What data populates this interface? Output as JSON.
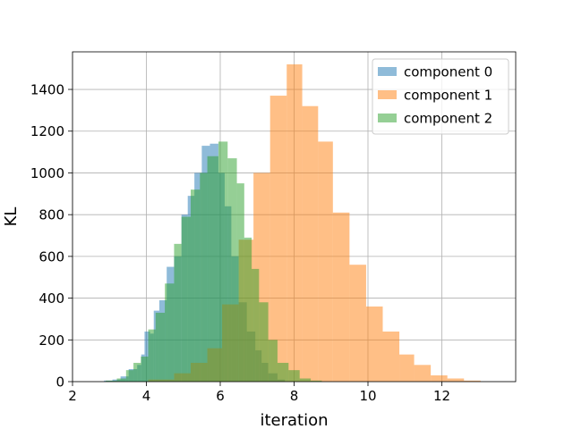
{
  "chart_data": {
    "type": "bar",
    "subtype": "histogram-overlay",
    "xlabel": "iteration",
    "ylabel": "KL",
    "xlim": [
      2,
      14
    ],
    "ylim": [
      0,
      1580
    ],
    "xticks": [
      2,
      4,
      6,
      8,
      10,
      12
    ],
    "yticks": [
      0,
      200,
      400,
      600,
      800,
      1000,
      1200,
      1400
    ],
    "grid": true,
    "legend_position": "top-right",
    "series": [
      {
        "name": "component 0",
        "color": "#1f77b4",
        "opacity": 0.5,
        "bins": [
          [
            2.85,
            3.08,
            5
          ],
          [
            3.08,
            3.3,
            10
          ],
          [
            3.3,
            3.52,
            25
          ],
          [
            3.52,
            3.75,
            60
          ],
          [
            3.75,
            3.86,
            80
          ],
          [
            3.86,
            3.95,
            130
          ],
          [
            3.95,
            4.1,
            240
          ],
          [
            4.1,
            4.2,
            230
          ],
          [
            4.2,
            4.35,
            340
          ],
          [
            4.35,
            4.55,
            390
          ],
          [
            4.55,
            4.75,
            550
          ],
          [
            4.75,
            4.95,
            600
          ],
          [
            4.95,
            5.12,
            800
          ],
          [
            5.12,
            5.3,
            890
          ],
          [
            5.3,
            5.5,
            1000
          ],
          [
            5.5,
            5.72,
            1130
          ],
          [
            5.72,
            5.95,
            1140
          ],
          [
            5.95,
            6.12,
            1000
          ],
          [
            6.12,
            6.3,
            840
          ],
          [
            6.3,
            6.5,
            600
          ],
          [
            6.5,
            6.72,
            380
          ],
          [
            6.72,
            6.95,
            240
          ],
          [
            6.95,
            7.12,
            150
          ],
          [
            7.12,
            7.3,
            90
          ],
          [
            7.3,
            7.55,
            40
          ],
          [
            7.55,
            7.75,
            10
          ]
        ]
      },
      {
        "name": "component 1",
        "color": "#ff7f0e",
        "opacity": 0.5,
        "bins": [
          [
            4.05,
            4.75,
            10
          ],
          [
            4.75,
            5.2,
            40
          ],
          [
            5.2,
            5.65,
            90
          ],
          [
            5.65,
            6.05,
            160
          ],
          [
            6.05,
            6.5,
            370
          ],
          [
            6.5,
            6.9,
            680
          ],
          [
            6.9,
            7.35,
            1000
          ],
          [
            7.35,
            7.8,
            1370
          ],
          [
            7.8,
            8.22,
            1520
          ],
          [
            8.22,
            8.65,
            1320
          ],
          [
            8.65,
            9.05,
            1150
          ],
          [
            9.05,
            9.5,
            810
          ],
          [
            9.5,
            9.95,
            560
          ],
          [
            9.95,
            10.4,
            360
          ],
          [
            10.4,
            10.85,
            240
          ],
          [
            10.85,
            11.25,
            130
          ],
          [
            11.25,
            11.7,
            80
          ],
          [
            11.7,
            12.15,
            30
          ],
          [
            12.15,
            12.6,
            15
          ],
          [
            12.6,
            13.05,
            5
          ]
        ]
      },
      {
        "name": "component 2",
        "color": "#2ca02c",
        "opacity": 0.5,
        "bins": [
          [
            2.9,
            3.2,
            5
          ],
          [
            3.2,
            3.45,
            15
          ],
          [
            3.45,
            3.65,
            55
          ],
          [
            3.65,
            3.85,
            90
          ],
          [
            3.85,
            4.05,
            120
          ],
          [
            4.05,
            4.25,
            250
          ],
          [
            4.25,
            4.5,
            330
          ],
          [
            4.5,
            4.75,
            470
          ],
          [
            4.75,
            4.95,
            660
          ],
          [
            4.95,
            5.2,
            790
          ],
          [
            5.2,
            5.45,
            920
          ],
          [
            5.45,
            5.65,
            1000
          ],
          [
            5.65,
            5.95,
            1080
          ],
          [
            5.95,
            6.2,
            1150
          ],
          [
            6.2,
            6.45,
            1070
          ],
          [
            6.45,
            6.65,
            950
          ],
          [
            6.65,
            6.85,
            690
          ],
          [
            6.85,
            7.05,
            540
          ],
          [
            7.05,
            7.3,
            380
          ],
          [
            7.3,
            7.55,
            200
          ],
          [
            7.55,
            7.85,
            90
          ],
          [
            7.85,
            8.15,
            55
          ],
          [
            8.15,
            8.45,
            15
          ],
          [
            8.45,
            8.75,
            5
          ]
        ]
      }
    ]
  }
}
